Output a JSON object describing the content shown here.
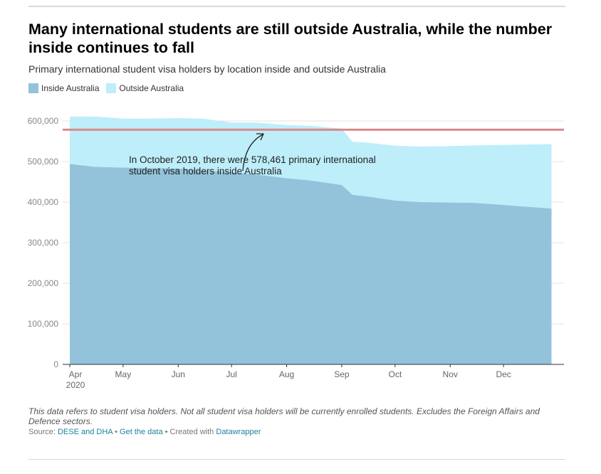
{
  "header": {
    "title": "Many international students are still outside Australia, while the number inside continues to fall",
    "subtitle": "Primary international student visa holders by location inside and outside Australia"
  },
  "legend": {
    "inside_label": "Inside Australia",
    "outside_label": "Outside Australia"
  },
  "colors": {
    "inside": "#93c3da",
    "outside": "#bdeefa",
    "reference_line": "#d9888a",
    "grid": "#e3e3e3"
  },
  "chart_data": {
    "type": "area",
    "stacked": true,
    "x_start": "2020-04-01",
    "x_end": "2020-12-31",
    "x": [
      "2020-04-01",
      "2020-04-15",
      "2020-05-01",
      "2020-05-15",
      "2020-06-01",
      "2020-06-15",
      "2020-07-01",
      "2020-07-15",
      "2020-08-01",
      "2020-08-15",
      "2020-09-01",
      "2020-09-07",
      "2020-09-15",
      "2020-10-01",
      "2020-10-15",
      "2020-11-01",
      "2020-11-15",
      "2020-12-01",
      "2020-12-28"
    ],
    "series": [
      {
        "name": "Inside Australia",
        "values": [
          494000,
          487000,
          485000,
          484000,
          483000,
          478000,
          474000,
          468000,
          459000,
          453000,
          442000,
          418000,
          414000,
          404000,
          400000,
          399000,
          398000,
          393000,
          384000
        ]
      },
      {
        "name": "Outside Australia",
        "values": [
          117000,
          124000,
          121000,
          122000,
          124000,
          128000,
          122000,
          128000,
          131000,
          135000,
          139000,
          131000,
          133000,
          135000,
          137000,
          139000,
          142000,
          148000,
          159000
        ]
      }
    ],
    "ylim": [
      0,
      600000
    ],
    "yticks": [
      0,
      100000,
      200000,
      300000,
      400000,
      500000,
      600000
    ],
    "ytick_labels": [
      "0",
      "100,000",
      "200,000",
      "300,000",
      "400,000",
      "500,000",
      "600,000"
    ],
    "xtick_labels": [
      {
        "date": "2020-04-01",
        "label": "Apr",
        "sublabel": "2020"
      },
      {
        "date": "2020-05-01",
        "label": "May",
        "sublabel": ""
      },
      {
        "date": "2020-06-01",
        "label": "Jun",
        "sublabel": ""
      },
      {
        "date": "2020-07-01",
        "label": "Jul",
        "sublabel": ""
      },
      {
        "date": "2020-08-01",
        "label": "Aug",
        "sublabel": ""
      },
      {
        "date": "2020-09-01",
        "label": "Sep",
        "sublabel": ""
      },
      {
        "date": "2020-10-01",
        "label": "Oct",
        "sublabel": ""
      },
      {
        "date": "2020-11-01",
        "label": "Nov",
        "sublabel": ""
      },
      {
        "date": "2020-12-01",
        "label": "Dec",
        "sublabel": ""
      }
    ],
    "reference_line": {
      "value": 578461,
      "annotation_lines": [
        "In October 2019, there were 578,461 primary international",
        "student visa holders inside Australia"
      ]
    },
    "grid": true,
    "legend_position": "top-left"
  },
  "footer": {
    "notes": "This data refers to student visa holders. Not all student visa holders will be currently enrolled students. Excludes the Foreign Affairs and Defence sectors.",
    "source_prefix": "Source:",
    "source_link": "DESE and DHA",
    "separator": "•",
    "get_data": "Get the data",
    "created_with": "Created with",
    "datawrapper": "Datawrapper"
  }
}
